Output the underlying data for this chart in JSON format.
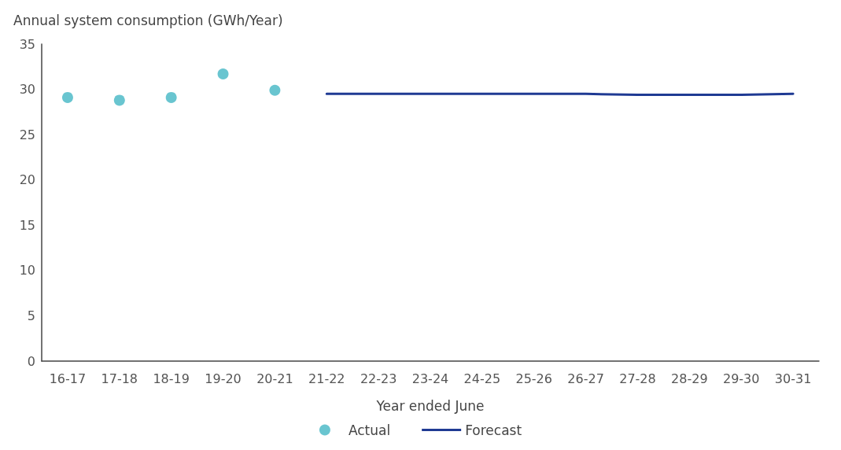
{
  "chart_data": {
    "type": "scatter",
    "ylabel": "Annual system consumption (GWh/Year)",
    "xlabel": "Year ended June",
    "categories": [
      "16-17",
      "17-18",
      "18-19",
      "19-20",
      "20-21",
      "21-22",
      "22-23",
      "23-24",
      "24-25",
      "25-26",
      "26-27",
      "27-28",
      "28-29",
      "29-30",
      "30-31"
    ],
    "series": [
      {
        "name": "Actual",
        "color": "#44b6c4",
        "marker": "circle",
        "values": [
          29.1,
          28.8,
          29.1,
          31.7,
          29.9,
          null,
          null,
          null,
          null,
          null,
          null,
          null,
          null,
          null,
          null
        ]
      },
      {
        "name": "Forecast",
        "type": "line",
        "color": "#1f3a93",
        "marker": "none",
        "values": [
          null,
          null,
          null,
          null,
          null,
          29.5,
          29.5,
          29.5,
          29.5,
          29.5,
          29.5,
          29.4,
          29.4,
          29.4,
          29.5
        ]
      }
    ],
    "ylim": [
      0,
      35
    ],
    "yticks": [
      0,
      5,
      10,
      15,
      20,
      25,
      30,
      35
    ],
    "grid": false,
    "legend": "bottom"
  }
}
